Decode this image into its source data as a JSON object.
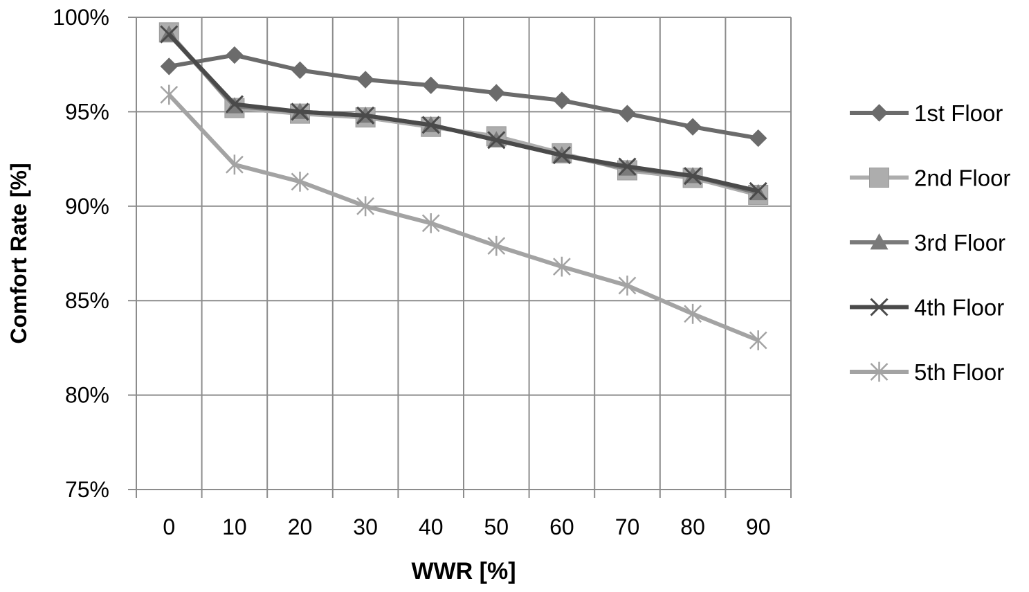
{
  "chart_data": {
    "type": "line",
    "xlabel": "WWR [%]",
    "ylabel": "Comfort Rate [%]",
    "categories": [
      "0",
      "10",
      "20",
      "30",
      "40",
      "50",
      "60",
      "70",
      "80",
      "90"
    ],
    "ylim": [
      75,
      100
    ],
    "yticks": [
      "75%",
      "80%",
      "85%",
      "90%",
      "95%",
      "100%"
    ],
    "grid": true,
    "legend_position": "right",
    "series": [
      {
        "name": "1st Floor",
        "marker": "diamond",
        "color": "#6b6b6b",
        "values": [
          97.4,
          98.0,
          97.2,
          96.7,
          96.4,
          96.0,
          95.6,
          94.9,
          94.2,
          93.6
        ]
      },
      {
        "name": "2nd Floor",
        "marker": "square",
        "color": "#adadad",
        "values": [
          99.2,
          95.2,
          94.9,
          94.7,
          94.2,
          93.7,
          92.8,
          91.9,
          91.5,
          90.6
        ]
      },
      {
        "name": "3rd Floor",
        "marker": "triangle",
        "color": "#7a7a7a",
        "values": [
          99.1,
          95.3,
          95.0,
          94.8,
          94.3,
          93.5,
          92.7,
          92.0,
          91.6,
          90.7
        ]
      },
      {
        "name": "4th Floor",
        "marker": "x",
        "color": "#4a4a4a",
        "values": [
          99.1,
          95.4,
          95.0,
          94.8,
          94.3,
          93.5,
          92.7,
          92.1,
          91.6,
          90.8
        ]
      },
      {
        "name": "5th Floor",
        "marker": "star",
        "color": "#a3a3a3",
        "values": [
          95.9,
          92.2,
          91.3,
          90.0,
          89.1,
          87.9,
          86.8,
          85.8,
          84.3,
          82.9
        ]
      }
    ]
  }
}
